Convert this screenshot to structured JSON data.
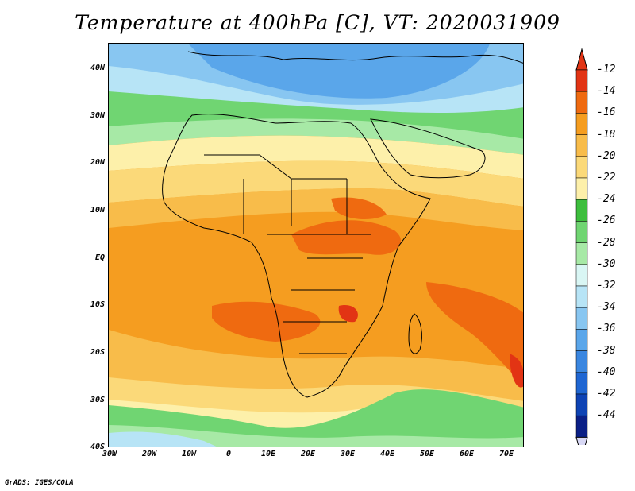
{
  "title": "Temperature at 400hPa [C], VT: 2020031909",
  "footer": "GrADS: IGES/COLA",
  "axes": {
    "lat_labels": [
      "40N",
      "30N",
      "20N",
      "10N",
      "EQ",
      "10S",
      "20S",
      "30S",
      "40S"
    ],
    "lon_labels": [
      "30W",
      "20W",
      "10W",
      "0",
      "10E",
      "20E",
      "30E",
      "40E",
      "50E",
      "60E",
      "70E"
    ],
    "lat_range": [
      -40,
      45
    ],
    "lon_range": [
      -30,
      75
    ]
  },
  "colorbar": {
    "labels": [
      "-12",
      "-14",
      "-16",
      "-18",
      "-20",
      "-22",
      "-24",
      "-26",
      "-28",
      "-30",
      "-32",
      "-34",
      "-36",
      "-38",
      "-40",
      "-42",
      "-44"
    ],
    "colors": [
      "#e23414",
      "#ef6a10",
      "#f59d20",
      "#f8bc4a",
      "#fbd979",
      "#fdf0aa",
      "#3dbe3d",
      "#70d572",
      "#a7e9a6",
      "#d9f6f4",
      "#b7e4f6",
      "#88c6f1",
      "#5aa6ea",
      "#3a86e0",
      "#1f66d2",
      "#0e43b4",
      "#0a1f86"
    ],
    "top_arrow_color": "#e23414",
    "bottom_arrow_color": "#d8d8f5"
  },
  "map_colors": {
    "cold_blue": "#5aa6ea",
    "blue": "#88c6f1",
    "light_blue": "#b7e4f6",
    "green": "#3dbe3d",
    "light_green": "#a7e9a6",
    "pale_yellow": "#fdf0aa",
    "yellow": "#fbd979",
    "light_orange": "#f8bc4a",
    "orange": "#f59d20",
    "dark_orange": "#ef6a10",
    "red": "#e23414"
  }
}
